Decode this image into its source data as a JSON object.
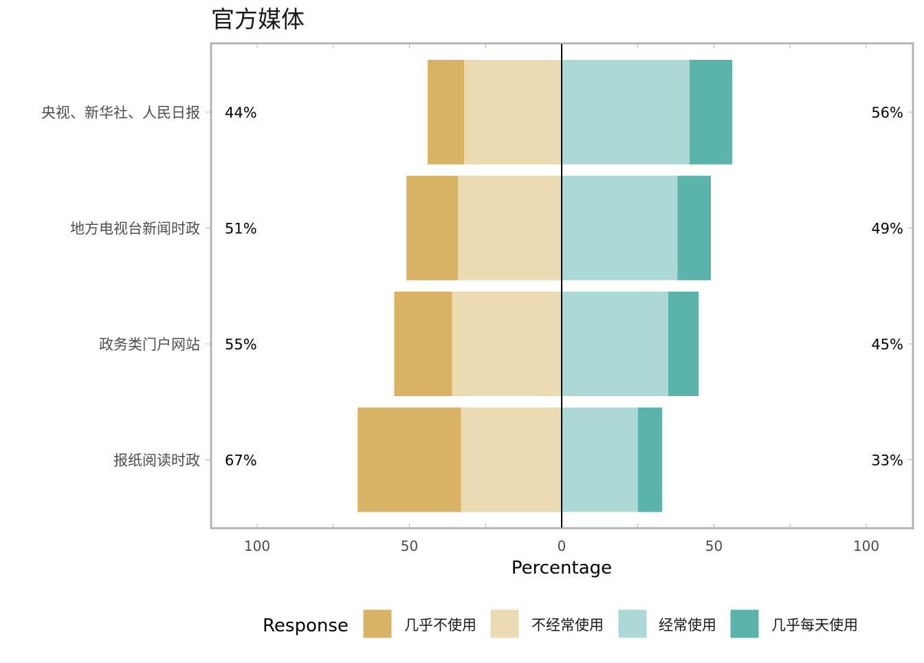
{
  "chart_data": {
    "type": "bar",
    "orientation": "horizontal",
    "stacking": "diverging",
    "title": "官方媒体",
    "xlabel": "Percentage",
    "ylabel": "",
    "xlim": [
      -100,
      100
    ],
    "x_ticks": [
      -100,
      -50,
      0,
      50,
      100
    ],
    "x_tick_labels": [
      "100",
      "50",
      "0",
      "50",
      "100"
    ],
    "categories": [
      "央视、新华社、人民日报",
      "地方电视台新闻时政",
      "政务类门户网站",
      "报纸阅读时政"
    ],
    "series": [
      {
        "name": "几乎不使用",
        "side": "negative",
        "color": "#D8B365",
        "values": [
          12,
          17,
          19,
          34
        ]
      },
      {
        "name": "不经常使用",
        "side": "negative",
        "color": "#EBDAB2",
        "values": [
          32,
          34,
          36,
          33
        ]
      },
      {
        "name": "经常使用",
        "side": "positive",
        "color": "#ACD9D5",
        "values": [
          42,
          38,
          35,
          25
        ]
      },
      {
        "name": "几乎每天使用",
        "side": "positive",
        "color": "#5AB4AC",
        "values": [
          14,
          11,
          10,
          8
        ]
      }
    ],
    "left_percent_labels": [
      "44%",
      "51%",
      "55%",
      "67%"
    ],
    "right_percent_labels": [
      "56%",
      "49%",
      "45%",
      "33%"
    ],
    "legend": {
      "title": "Response",
      "position": "bottom",
      "entries": [
        "几乎不使用",
        "不经常使用",
        "经常使用",
        "几乎每天使用"
      ]
    },
    "grid": false,
    "zero_line": true,
    "panel_border_color": "#B3B3B3"
  }
}
